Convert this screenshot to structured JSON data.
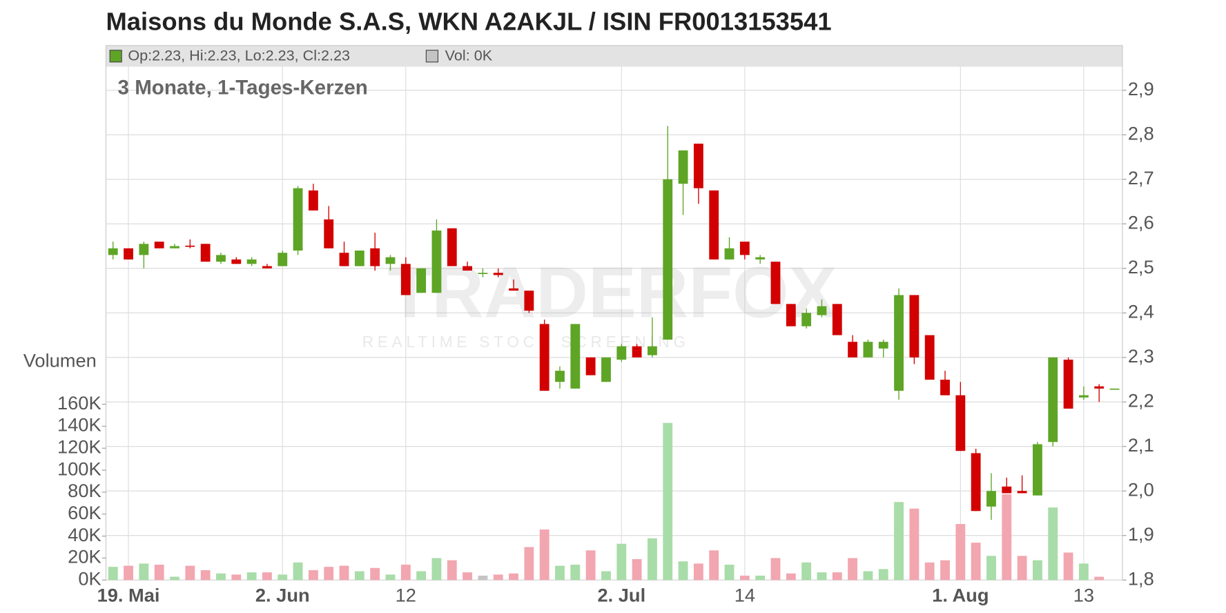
{
  "chart_data": {
    "type": "candlestick",
    "title": "Maisons du Monde S.A.S, WKN A2AKJL / ISIN FR0013153541",
    "info": [
      "Op:2.23, Hi:2.23, Lo:2.23, Cl:2.23",
      "Vol: 0K"
    ],
    "subtitle": "3 Monate, 1-Tages-Kerzen",
    "watermark": [
      "TRADERFOX",
      "REALTIME STOCK SCREENING"
    ],
    "volume_label": "Volumen",
    "categories": [
      null,
      "19. Mai",
      null,
      null,
      null,
      null,
      null,
      null,
      null,
      null,
      null,
      "2. Jun",
      null,
      null,
      null,
      null,
      null,
      null,
      null,
      "12",
      null,
      null,
      null,
      null,
      null,
      null,
      null,
      null,
      null,
      null,
      null,
      null,
      null,
      "2. Jul",
      null,
      null,
      null,
      null,
      null,
      null,
      null,
      "14",
      null,
      null,
      null,
      null,
      null,
      null,
      null,
      null,
      null,
      null,
      null,
      null,
      null,
      "1. Aug",
      null,
      null,
      null,
      null,
      null,
      null,
      null,
      "13",
      null,
      null
    ],
    "open": [
      2.53,
      2.545,
      2.53,
      2.56,
      2.545,
      2.551,
      2.555,
      2.515,
      2.52,
      2.51,
      2.505,
      2.505,
      2.54,
      2.675,
      2.61,
      2.535,
      2.505,
      2.545,
      2.51,
      2.51,
      2.445,
      2.445,
      2.59,
      2.505,
      2.49,
      2.49,
      2.455,
      2.45,
      2.375,
      2.245,
      2.23,
      2.3,
      2.245,
      2.295,
      2.325,
      2.305,
      2.34,
      2.69,
      2.78,
      2.675,
      2.52,
      2.56,
      2.52,
      2.515,
      2.42,
      2.37,
      2.395,
      2.42,
      2.335,
      2.3,
      2.32,
      2.225,
      2.44,
      2.35,
      2.25,
      2.215,
      2.085,
      1.965,
      2.01,
      2.0,
      1.99,
      2.11,
      2.295,
      2.21,
      2.235,
      2.23
    ],
    "high": [
      2.56,
      2.545,
      2.56,
      2.56,
      2.555,
      2.565,
      2.555,
      2.535,
      2.525,
      2.525,
      2.51,
      2.54,
      2.685,
      2.69,
      2.64,
      2.56,
      2.54,
      2.58,
      2.53,
      2.525,
      2.5,
      2.61,
      2.59,
      2.515,
      2.5,
      2.5,
      2.475,
      2.45,
      2.385,
      2.28,
      2.375,
      2.3,
      2.3,
      2.33,
      2.33,
      2.39,
      2.82,
      2.76,
      2.78,
      2.675,
      2.57,
      2.56,
      2.53,
      2.515,
      2.42,
      2.41,
      2.43,
      2.42,
      2.35,
      2.34,
      2.34,
      2.455,
      2.44,
      2.35,
      2.27,
      2.245,
      2.095,
      2.04,
      2.03,
      2.035,
      2.11,
      2.3,
      2.3,
      2.235,
      2.24,
      2.23
    ],
    "low": [
      2.52,
      2.52,
      2.5,
      2.545,
      2.545,
      2.545,
      2.515,
      2.51,
      2.51,
      2.505,
      2.5,
      2.505,
      2.53,
      2.63,
      2.545,
      2.505,
      2.505,
      2.495,
      2.495,
      2.44,
      2.445,
      2.445,
      2.505,
      2.495,
      2.48,
      2.48,
      2.45,
      2.4,
      2.225,
      2.23,
      2.23,
      2.26,
      2.245,
      2.29,
      2.3,
      2.3,
      2.34,
      2.62,
      2.645,
      2.52,
      2.52,
      2.52,
      2.51,
      2.42,
      2.37,
      2.365,
      2.39,
      2.35,
      2.3,
      2.3,
      2.3,
      2.205,
      2.285,
      2.25,
      2.215,
      2.09,
      1.955,
      1.935,
      1.995,
      1.995,
      1.99,
      2.1,
      2.185,
      2.205,
      2.2,
      2.23
    ],
    "close": [
      2.545,
      2.52,
      2.555,
      2.545,
      2.55,
      2.55,
      2.515,
      2.53,
      2.51,
      2.52,
      2.5,
      2.535,
      2.68,
      2.63,
      2.545,
      2.505,
      2.54,
      2.505,
      2.525,
      2.44,
      2.5,
      2.585,
      2.505,
      2.495,
      2.49,
      2.485,
      2.45,
      2.405,
      2.225,
      2.27,
      2.375,
      2.26,
      2.3,
      2.325,
      2.3,
      2.325,
      2.7,
      2.765,
      2.68,
      2.52,
      2.545,
      2.53,
      2.525,
      2.42,
      2.37,
      2.4,
      2.415,
      2.35,
      2.3,
      2.335,
      2.335,
      2.44,
      2.3,
      2.25,
      2.215,
      2.09,
      1.955,
      2.0,
      1.995,
      1.995,
      2.105,
      2.3,
      2.185,
      2.215,
      2.23,
      2.23
    ],
    "volume": [
      12000,
      13000,
      15000,
      14000,
      3000,
      13000,
      9000,
      6000,
      5000,
      7000,
      7000,
      5000,
      16000,
      9000,
      12000,
      13000,
      8000,
      11000,
      5000,
      14000,
      8000,
      20000,
      18000,
      7000,
      4000,
      5000,
      6000,
      30000,
      46000,
      13000,
      14000,
      27000,
      8000,
      33000,
      19000,
      38000,
      143000,
      17000,
      15000,
      27000,
      14000,
      4000,
      4000,
      20000,
      6000,
      16000,
      7000,
      7000,
      20000,
      8000,
      10000,
      71000,
      65000,
      16000,
      18000,
      51000,
      34000,
      22000,
      78000,
      22000,
      18000,
      66000,
      25000,
      15000,
      3000,
      0
    ],
    "colors": {
      "up": "#5ea526",
      "down": "#d20000",
      "flat": "#5ea526",
      "vol_up": "#a8dca8",
      "vol_down": "#f2a6b0",
      "vol_flat": "#c4c4c4",
      "info_swatch_price": "#5ea526",
      "info_swatch_volume": "#c4c4c4"
    },
    "ylim": [
      1.8,
      2.9
    ],
    "yticks": [
      {
        "value": 1.8,
        "label": "1,8"
      },
      {
        "value": 1.9,
        "label": "1,9"
      },
      {
        "value": 2.0,
        "label": "2,0"
      },
      {
        "value": 2.1,
        "label": "2,1"
      },
      {
        "value": 2.2,
        "label": "2,2"
      },
      {
        "value": 2.3,
        "label": "2,3"
      },
      {
        "value": 2.4,
        "label": "2,4"
      },
      {
        "value": 2.5,
        "label": "2,5"
      },
      {
        "value": 2.6,
        "label": "2,6"
      },
      {
        "value": 2.7,
        "label": "2,7"
      },
      {
        "value": 2.8,
        "label": "2,8"
      },
      {
        "value": 2.9,
        "label": "2,9"
      }
    ],
    "y2lim": [
      0,
      160000
    ],
    "y2ticks": [
      {
        "value": 0,
        "label": "0K"
      },
      {
        "value": 20000,
        "label": "20K"
      },
      {
        "value": 40000,
        "label": "40K"
      },
      {
        "value": 60000,
        "label": "60K"
      },
      {
        "value": 80000,
        "label": "80K"
      },
      {
        "value": 100000,
        "label": "100K"
      },
      {
        "value": 120000,
        "label": "120K"
      },
      {
        "value": 140000,
        "label": "140K"
      },
      {
        "value": 160000,
        "label": "160K"
      }
    ],
    "grid": true
  }
}
